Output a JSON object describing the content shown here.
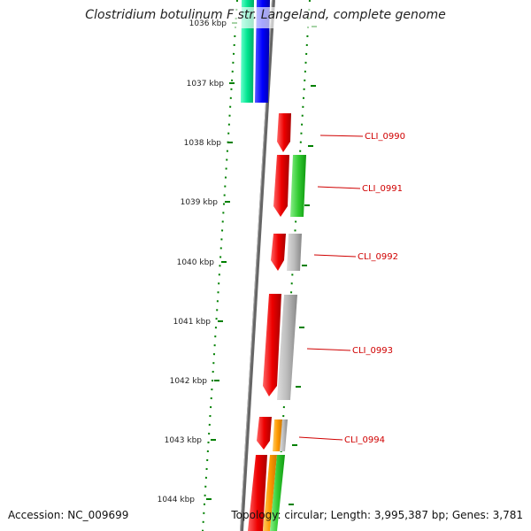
{
  "title": "Clostridium botulinum F str. Langeland, complete genome",
  "footer": {
    "accession": "Accession: NC_009699",
    "summary": "Topology: circular; Length: 3,995,387 bp; Genes: 3,781"
  },
  "scale": {
    "unit": "kbp",
    "ticks": [
      "1036 kbp",
      "1037 kbp",
      "1038 kbp",
      "1039 kbp",
      "1040 kbp",
      "1041 kbp",
      "1042 kbp",
      "1043 kbp",
      "1044 kbp"
    ]
  },
  "gene_labels": [
    "CLI_0990",
    "CLI_0991",
    "CLI_0992",
    "CLI_0993",
    "CLI_0994"
  ],
  "colors": {
    "cds": "#ff0000",
    "teal": "#00e58f",
    "blue": "#0000ff",
    "green": "#33cc33",
    "grey": "#bbbbbb",
    "orange": "#ff9900",
    "backbone": "#777777",
    "dots": "#008000",
    "label": "#d00000"
  }
}
